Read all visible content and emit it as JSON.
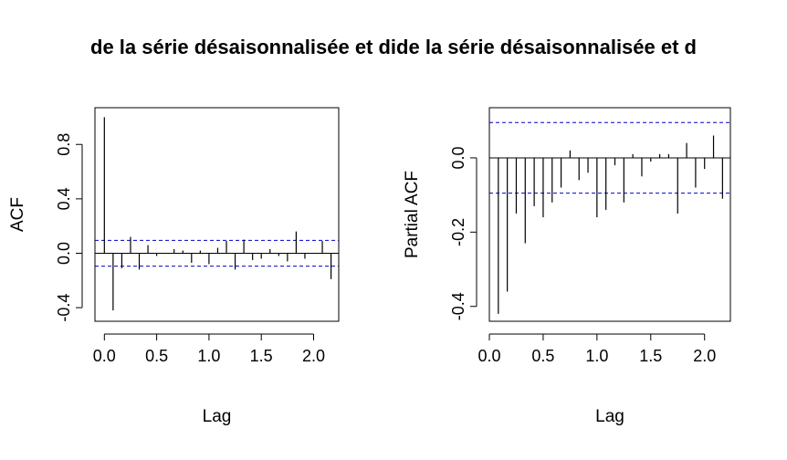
{
  "page": {
    "title": "de la série désaisonnalisée et dide la série désaisonnalisée et d"
  },
  "chart_data": [
    {
      "type": "bar",
      "subtype": "acf",
      "title": "",
      "xlabel": "Lag",
      "ylabel": "ACF",
      "xlim": [
        -0.09,
        2.24
      ],
      "ylim": [
        -0.5,
        1.07
      ],
      "xticks": [
        0.0,
        0.5,
        1.0,
        1.5,
        2.0
      ],
      "xtick_labels": [
        "0.0",
        "0.5",
        "1.0",
        "1.5",
        "2.0"
      ],
      "yticks": [
        -0.4,
        0.0,
        0.4,
        0.8
      ],
      "ytick_labels": [
        "-0.4",
        "0.0",
        "0.4",
        "0.8"
      ],
      "ci": 0.095,
      "ci_color": "#0000cc",
      "x": [
        0.0,
        0.0833,
        0.1667,
        0.25,
        0.3333,
        0.4167,
        0.5,
        0.5833,
        0.6667,
        0.75,
        0.8333,
        0.9167,
        1.0,
        1.0833,
        1.1667,
        1.25,
        1.3333,
        1.4167,
        1.5,
        1.5833,
        1.6667,
        1.75,
        1.8333,
        1.9167,
        2.0,
        2.0833,
        2.1667
      ],
      "values": [
        1.0,
        -0.42,
        -0.11,
        0.12,
        -0.12,
        0.06,
        -0.02,
        0.0,
        0.03,
        0.02,
        -0.07,
        0.02,
        -0.08,
        0.04,
        0.09,
        -0.12,
        0.1,
        -0.05,
        -0.04,
        0.03,
        -0.02,
        -0.06,
        0.16,
        -0.04,
        0.0,
        0.09,
        -0.19
      ]
    },
    {
      "type": "bar",
      "subtype": "pacf",
      "title": "",
      "xlabel": "Lag",
      "ylabel": "Partial ACF",
      "xlim": [
        0.0,
        2.24
      ],
      "ylim": [
        -0.44,
        0.135
      ],
      "xticks": [
        0.0,
        0.5,
        1.0,
        1.5,
        2.0
      ],
      "xtick_labels": [
        "0.0",
        "0.5",
        "1.0",
        "1.5",
        "2.0"
      ],
      "yticks": [
        -0.4,
        -0.2,
        0.0
      ],
      "ytick_labels": [
        "-0.4",
        "-0.2",
        "0.0"
      ],
      "ci": 0.095,
      "ci_color": "#0000cc",
      "x": [
        0.0833,
        0.1667,
        0.25,
        0.3333,
        0.4167,
        0.5,
        0.5833,
        0.6667,
        0.75,
        0.8333,
        0.9167,
        1.0,
        1.0833,
        1.1667,
        1.25,
        1.3333,
        1.4167,
        1.5,
        1.5833,
        1.6667,
        1.75,
        1.8333,
        1.9167,
        2.0,
        2.0833,
        2.1667
      ],
      "values": [
        -0.42,
        -0.36,
        -0.15,
        -0.23,
        -0.13,
        -0.16,
        -0.12,
        -0.08,
        0.02,
        -0.06,
        -0.04,
        -0.16,
        -0.14,
        -0.02,
        -0.12,
        0.01,
        -0.05,
        -0.01,
        0.01,
        0.01,
        -0.15,
        0.04,
        -0.08,
        -0.03,
        0.06,
        -0.11
      ]
    }
  ]
}
